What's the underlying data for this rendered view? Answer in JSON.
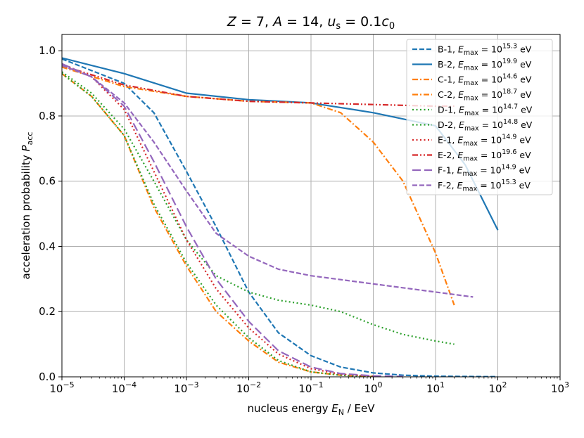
{
  "chart_data": {
    "type": "line",
    "title": "Z = 7, A = 14, u_s = 0.1c_0",
    "title_parts": {
      "z": "Z",
      "z_val": " = 7, ",
      "a": "A",
      "a_val": " = 14, ",
      "u": "u",
      "u_sub": "s",
      "u_val": " = 0.1",
      "c": "c",
      "c_sub": "0"
    },
    "xlabel": "nucleus energy E_N / EeV",
    "xlabel_parts": {
      "prefix": "nucleus energy ",
      "e": "E",
      "e_sub": "N",
      "suffix": " / EeV"
    },
    "ylabel": "acceleration probability P_acc",
    "ylabel_parts": {
      "prefix": "acceleration probability ",
      "p": "P",
      "p_sub": "acc"
    },
    "x_scale": "log",
    "xlim": [
      1e-05,
      1000
    ],
    "ylim": [
      0.0,
      1.05
    ],
    "x_ticks": [
      {
        "value": 1e-05,
        "base": "10",
        "exp": "−5"
      },
      {
        "value": 0.0001,
        "base": "10",
        "exp": "−4"
      },
      {
        "value": 0.001,
        "base": "10",
        "exp": "−3"
      },
      {
        "value": 0.01,
        "base": "10",
        "exp": "−2"
      },
      {
        "value": 0.1,
        "base": "10",
        "exp": "−1"
      },
      {
        "value": 1,
        "base": "10",
        "exp": "0"
      },
      {
        "value": 10,
        "base": "10",
        "exp": "1"
      },
      {
        "value": 100,
        "base": "10",
        "exp": "2"
      },
      {
        "value": 1000,
        "base": "10",
        "exp": "3"
      }
    ],
    "y_ticks": [
      {
        "value": 0.0,
        "label": "0.0"
      },
      {
        "value": 0.2,
        "label": "0.2"
      },
      {
        "value": 0.4,
        "label": "0.4"
      },
      {
        "value": 0.6,
        "label": "0.6"
      },
      {
        "value": 0.8,
        "label": "0.8"
      },
      {
        "value": 1.0,
        "label": "1.0"
      }
    ],
    "grid": true,
    "legend_position": "top-right",
    "series": [
      {
        "name": "B-1",
        "emax_exp": "15.3",
        "color": "#1f77b4",
        "dash": "dashed",
        "x": [
          1e-05,
          0.0001,
          0.0003,
          0.001,
          0.003,
          0.01,
          0.03,
          0.1,
          0.3,
          1,
          3,
          10,
          30,
          100
        ],
        "y": [
          0.975,
          0.9,
          0.81,
          0.63,
          0.46,
          0.26,
          0.135,
          0.065,
          0.03,
          0.012,
          0.005,
          0.002,
          0.001,
          0.0005
        ]
      },
      {
        "name": "B-2",
        "emax_exp": "19.9",
        "color": "#1f77b4",
        "dash": "solid",
        "x": [
          1e-05,
          0.0001,
          0.001,
          0.01,
          0.1,
          1,
          10,
          30,
          100
        ],
        "y": [
          0.978,
          0.93,
          0.87,
          0.85,
          0.84,
          0.81,
          0.77,
          0.65,
          0.45
        ]
      },
      {
        "name": "C-1",
        "emax_exp": "14.6",
        "color": "#ff7f0e",
        "dash": "dashdot",
        "x": [
          1e-05,
          3e-05,
          0.0001,
          0.0003,
          0.001,
          0.003,
          0.01,
          0.03,
          0.1,
          0.3,
          1
        ],
        "y": [
          0.93,
          0.86,
          0.74,
          0.52,
          0.34,
          0.2,
          0.11,
          0.045,
          0.015,
          0.005,
          0.001
        ]
      },
      {
        "name": "C-2",
        "emax_exp": "18.7",
        "color": "#ff7f0e",
        "dash": "dashdot",
        "x": [
          1e-05,
          0.0001,
          0.001,
          0.01,
          0.1,
          0.3,
          1,
          3,
          10,
          20
        ],
        "y": [
          0.95,
          0.89,
          0.86,
          0.845,
          0.84,
          0.81,
          0.72,
          0.6,
          0.38,
          0.22
        ]
      },
      {
        "name": "D-1",
        "emax_exp": "14.7",
        "color": "#2ca02c",
        "dash": "dotted",
        "x": [
          1e-05,
          3e-05,
          0.0001,
          0.0003,
          0.001,
          0.003,
          0.01,
          0.03,
          0.1,
          0.3,
          1
        ],
        "y": [
          0.93,
          0.86,
          0.74,
          0.53,
          0.35,
          0.22,
          0.12,
          0.05,
          0.015,
          0.005,
          0.001
        ]
      },
      {
        "name": "D-2",
        "emax_exp": "14.8",
        "color": "#2ca02c",
        "dash": "dotted",
        "x": [
          1e-05,
          3e-05,
          0.0001,
          0.0003,
          0.001,
          0.003,
          0.01,
          0.03,
          0.1,
          0.3,
          1,
          3,
          10,
          20
        ],
        "y": [
          0.935,
          0.87,
          0.76,
          0.6,
          0.42,
          0.31,
          0.26,
          0.235,
          0.22,
          0.2,
          0.16,
          0.13,
          0.11,
          0.1
        ]
      },
      {
        "name": "E-1",
        "emax_exp": "14.9",
        "color": "#d62728",
        "dash": "dotted",
        "x": [
          1e-05,
          3e-05,
          0.0001,
          0.0003,
          0.001,
          0.003,
          0.01,
          0.03,
          0.1,
          0.3,
          1
        ],
        "y": [
          0.96,
          0.92,
          0.82,
          0.63,
          0.42,
          0.27,
          0.15,
          0.07,
          0.025,
          0.008,
          0.002
        ]
      },
      {
        "name": "E-2",
        "emax_exp": "19.6",
        "color": "#d62728",
        "dash": "dashdotdot",
        "x": [
          1e-05,
          0.0001,
          0.001,
          0.01,
          0.1,
          1,
          10,
          20
        ],
        "y": [
          0.955,
          0.895,
          0.86,
          0.845,
          0.84,
          0.835,
          0.83,
          0.83
        ]
      },
      {
        "name": "F-1",
        "emax_exp": "14.9",
        "color": "#9467bd",
        "dash": "longdash",
        "x": [
          1e-05,
          3e-05,
          0.0001,
          0.0003,
          0.001,
          0.003,
          0.01,
          0.03,
          0.1,
          0.3,
          1,
          3
        ],
        "y": [
          0.96,
          0.92,
          0.83,
          0.66,
          0.46,
          0.3,
          0.17,
          0.08,
          0.03,
          0.01,
          0.003,
          0.001
        ]
      },
      {
        "name": "F-2",
        "emax_exp": "15.3",
        "color": "#9467bd",
        "dash": "dashed",
        "x": [
          1e-05,
          3e-05,
          0.0001,
          0.0003,
          0.001,
          0.003,
          0.01,
          0.03,
          0.1,
          1,
          10,
          40
        ],
        "y": [
          0.955,
          0.92,
          0.84,
          0.72,
          0.57,
          0.44,
          0.37,
          0.33,
          0.31,
          0.285,
          0.26,
          0.245
        ]
      }
    ],
    "legend_label_parts": {
      "e": "E",
      "e_sub": "max",
      "eq": " = 10",
      "unit": " eV"
    }
  }
}
